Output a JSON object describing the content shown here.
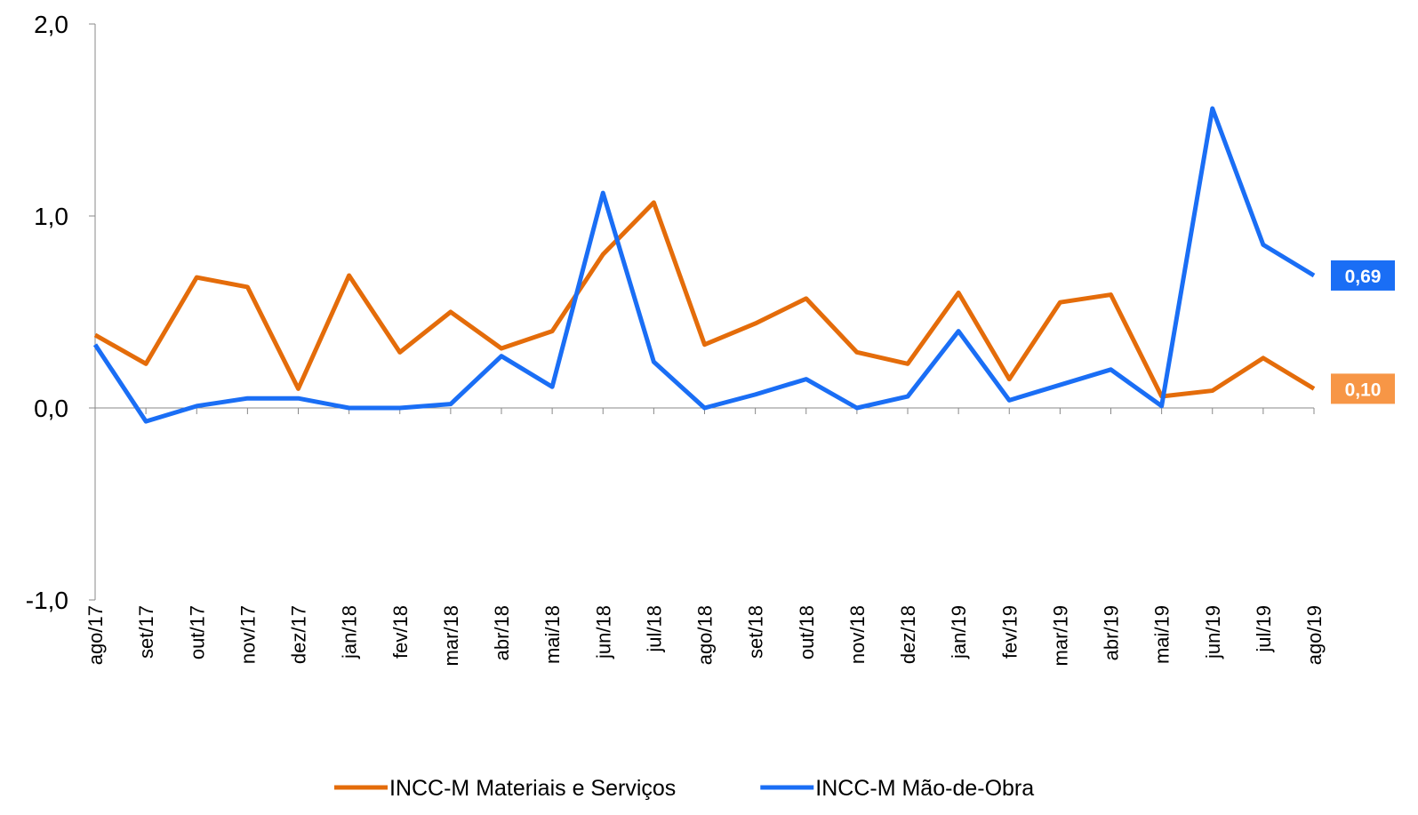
{
  "chart_data": {
    "type": "line",
    "categories": [
      "ago/17",
      "set/17",
      "out/17",
      "nov/17",
      "dez/17",
      "jan/18",
      "fev/18",
      "mar/18",
      "abr/18",
      "mai/18",
      "jun/18",
      "jul/18",
      "ago/18",
      "set/18",
      "out/18",
      "nov/18",
      "dez/18",
      "jan/19",
      "fev/19",
      "mar/19",
      "abr/19",
      "mai/19",
      "jun/19",
      "jul/19",
      "ago/19"
    ],
    "series": [
      {
        "name": "INCC-M Materiais e Serviços",
        "color": "#e46c0a",
        "values": [
          0.38,
          0.23,
          0.68,
          0.63,
          0.1,
          0.69,
          0.29,
          0.5,
          0.31,
          0.4,
          0.8,
          1.07,
          0.33,
          0.44,
          0.57,
          0.29,
          0.23,
          0.6,
          0.15,
          0.55,
          0.59,
          0.06,
          0.09,
          0.26,
          0.1
        ],
        "value_labels": [
          null,
          null,
          null,
          null,
          null,
          null,
          null,
          null,
          null,
          null,
          null,
          null,
          null,
          null,
          null,
          null,
          null,
          null,
          null,
          null,
          null,
          null,
          null,
          null,
          "0,10"
        ],
        "label_color": "#f79646"
      },
      {
        "name": "INCC-M Mão-de-Obra",
        "color": "#1a6ef5",
        "values": [
          0.33,
          -0.07,
          0.01,
          0.05,
          0.05,
          0.0,
          0.0,
          0.02,
          0.27,
          0.11,
          1.12,
          0.24,
          0.0,
          0.07,
          0.15,
          0.0,
          0.06,
          0.4,
          0.04,
          0.12,
          0.2,
          0.01,
          1.56,
          0.85,
          0.69
        ],
        "value_labels": [
          null,
          null,
          null,
          null,
          null,
          null,
          null,
          null,
          null,
          null,
          null,
          null,
          null,
          null,
          null,
          null,
          null,
          null,
          null,
          null,
          null,
          null,
          null,
          null,
          "0,69"
        ],
        "label_color": "#1a6ef5"
      }
    ],
    "ylim": [
      -1,
      2
    ],
    "yticks": [
      {
        "value": -1,
        "label": "-1,0"
      },
      {
        "value": 0,
        "label": "0,0"
      },
      {
        "value": 1,
        "label": "1,0"
      },
      {
        "value": 2,
        "label": "2,0"
      }
    ],
    "grid": false,
    "legend": "bottom"
  }
}
